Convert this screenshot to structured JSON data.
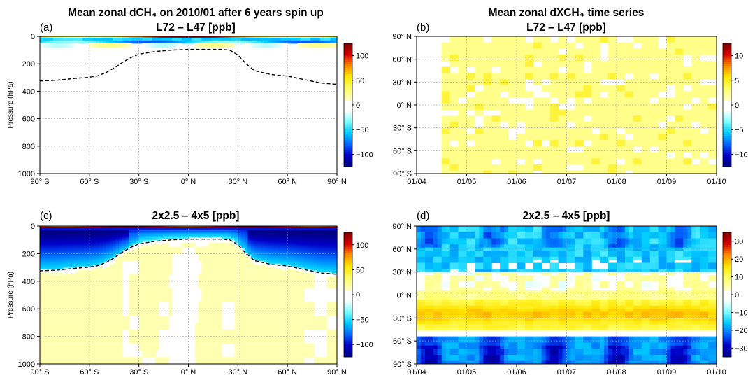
{
  "figure_titles": {
    "left_title": "Mean zonal dCH₄ on 2010/01 after 6 years spin up",
    "right_title": "Mean zonal dXCH₄ time series",
    "top_diff": "L72 – L47 [ppb]",
    "bottom_diff": "2x2.5 – 4x5 [ppb]"
  },
  "colors": {
    "colormap": [
      "#00007f",
      "#0000c8",
      "#0066ff",
      "#00ccff",
      "#7fffff",
      "#ffffff",
      "#ffffbf",
      "#ffff66",
      "#ffe600",
      "#ff8c00",
      "#d20000",
      "#7f0000"
    ],
    "dashed_line": "#000000",
    "grid": "#999999"
  },
  "chart_data": [
    {
      "panel": "(a)",
      "type": "heatmap",
      "title": "L72 – L47 [ppb]",
      "ylabel": "Pressure (hPa)",
      "x_ticks": [
        "90° S",
        "60° S",
        "30° S",
        "0° N",
        "30° N",
        "60° N",
        "90° N"
      ],
      "y_ticks": [
        "0",
        "200",
        "400",
        "600",
        "800",
        "1000"
      ],
      "xlim": [
        -90,
        90
      ],
      "ylim": [
        1000,
        0
      ],
      "colorbar_ticks": [
        "100",
        "50",
        "0",
        "−50",
        "−100"
      ],
      "colorbar_range": [
        -100,
        100
      ],
      "tropopause_dashed": {
        "lat": [
          -90,
          -80,
          -70,
          -60,
          -55,
          -50,
          -45,
          -40,
          -35,
          -30,
          -20,
          -10,
          0,
          10,
          20,
          25,
          30,
          35,
          40,
          50,
          60,
          70,
          80,
          90
        ],
        "pressure": [
          325,
          320,
          308,
          298,
          288,
          265,
          230,
          190,
          155,
          130,
          110,
          100,
          95,
          95,
          95,
          100,
          135,
          200,
          250,
          278,
          290,
          315,
          340,
          350
        ]
      },
      "description_features": "thin positive band near 0–30 hPa, cyan negative bands ~30–80 hPa, white elsewhere"
    },
    {
      "panel": "(b)",
      "type": "heatmap",
      "title": "L72 – L47 [ppb]",
      "x_ticks": [
        "01/04",
        "01/05",
        "01/06",
        "01/07",
        "01/08",
        "01/09",
        "01/10"
      ],
      "y_ticks": [
        "90° N",
        "60° N",
        "30° N",
        "0° N",
        "30° S",
        "60° S",
        "90° S"
      ],
      "colorbar_ticks": [
        "10",
        "5",
        "0",
        "−5",
        "−10"
      ],
      "colorbar_range": [
        -10,
        10
      ]
    },
    {
      "panel": "(c)",
      "type": "heatmap",
      "title": "2x2.5 – 4x5 [ppb]",
      "ylabel": "Pressure (hPa)",
      "x_ticks": [
        "90° S",
        "60° S",
        "30° S",
        "0° N",
        "30° N",
        "60° N",
        "90° N"
      ],
      "y_ticks": [
        "0",
        "200",
        "400",
        "600",
        "800",
        "1000"
      ],
      "xlim": [
        -90,
        90
      ],
      "ylim": [
        1000,
        0
      ],
      "colorbar_ticks": [
        "100",
        "50",
        "0",
        "−50",
        "−100"
      ],
      "colorbar_range": [
        -100,
        100
      ],
      "tropopause_dashed": {
        "lat": [
          -90,
          -80,
          -70,
          -60,
          -55,
          -50,
          -45,
          -40,
          -35,
          -30,
          -20,
          -10,
          0,
          10,
          20,
          25,
          30,
          35,
          40,
          50,
          60,
          70,
          80,
          90
        ],
        "pressure": [
          325,
          320,
          308,
          298,
          288,
          265,
          230,
          190,
          155,
          130,
          110,
          100,
          95,
          95,
          95,
          100,
          135,
          200,
          250,
          278,
          290,
          315,
          340,
          350
        ]
      }
    },
    {
      "panel": "(d)",
      "type": "heatmap",
      "title": "2x2.5 – 4x5 [ppb]",
      "x_ticks": [
        "01/04",
        "01/05",
        "01/06",
        "01/07",
        "01/08",
        "01/09",
        "01/10"
      ],
      "y_ticks": [
        "90° N",
        "60° N",
        "30° N",
        "0° N",
        "30° S",
        "60° S",
        "90° S"
      ],
      "colorbar_ticks": [
        "30",
        "20",
        "10",
        "0",
        "−10",
        "−20",
        "−30"
      ],
      "colorbar_range": [
        -30,
        30
      ]
    }
  ]
}
